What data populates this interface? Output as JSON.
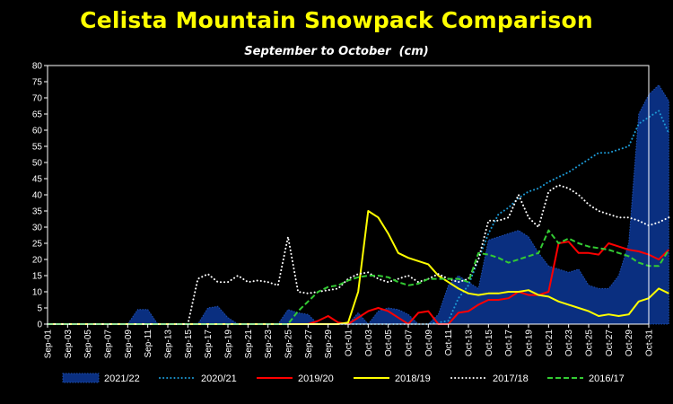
{
  "chart_data": {
    "type": "area",
    "title": "Celista Mountain Snowpack Comparison",
    "subtitle": "September to October  (cm)",
    "ylim": [
      0,
      80
    ],
    "yticks": [
      0,
      5,
      10,
      15,
      20,
      25,
      30,
      35,
      40,
      45,
      50,
      55,
      60,
      65,
      70,
      75,
      80
    ],
    "xticks": [
      "Sep-01",
      "Sep-03",
      "Sep-05",
      "Sep-07",
      "Sep-09",
      "Sep-11",
      "Sep-13",
      "Sep-15",
      "Sep-17",
      "Sep-19",
      "Sep-21",
      "Sep-23",
      "Sep-25",
      "Sep-27",
      "Sep-29",
      "Oct-01",
      "Oct-03",
      "Oct-05",
      "Oct-07",
      "Oct-09",
      "Oct-11",
      "Oct-13",
      "Oct-15",
      "Oct-17",
      "Oct-19",
      "Oct-21",
      "Oct-23",
      "Oct-25",
      "Oct-27",
      "Oct-29",
      "Oct-31"
    ],
    "x_day_index_note": "",
    "legend_position": "bottom",
    "series": [
      {
        "name": "2021/22",
        "style": "area",
        "color": "#0a2f80",
        "stroke": "#1e4fb0",
        "points": [
          [
            0,
            0
          ],
          [
            8,
            0
          ],
          [
            9,
            4.5
          ],
          [
            10,
            4.5
          ],
          [
            11,
            0
          ],
          [
            15,
            0
          ],
          [
            16,
            5
          ],
          [
            17,
            5.5
          ],
          [
            18,
            2
          ],
          [
            19,
            0
          ],
          [
            23,
            0
          ],
          [
            24,
            4.5
          ],
          [
            25,
            3.5
          ],
          [
            26,
            3
          ],
          [
            27,
            0
          ],
          [
            30,
            0
          ],
          [
            31,
            3.5
          ],
          [
            32,
            0
          ],
          [
            33,
            4
          ],
          [
            34,
            5
          ],
          [
            35,
            4.5
          ],
          [
            36,
            3
          ],
          [
            37,
            0
          ],
          [
            38,
            0
          ],
          [
            39,
            3
          ],
          [
            40,
            12
          ],
          [
            41,
            15
          ],
          [
            42,
            13
          ],
          [
            43,
            11
          ],
          [
            44,
            26
          ],
          [
            45,
            27
          ],
          [
            46,
            28
          ],
          [
            47,
            29
          ],
          [
            48,
            27
          ],
          [
            49,
            22
          ],
          [
            50,
            18
          ],
          [
            51,
            17
          ],
          [
            52,
            16
          ],
          [
            53,
            17
          ],
          [
            54,
            12
          ],
          [
            55,
            11
          ],
          [
            56,
            11
          ],
          [
            57,
            15
          ],
          [
            58,
            25
          ],
          [
            59,
            65
          ],
          [
            60,
            71
          ],
          [
            61,
            74
          ],
          [
            62,
            69
          ]
        ]
      },
      {
        "name": "2020/21",
        "style": "dotted",
        "color": "#1c9ad6",
        "points": [
          [
            0,
            0
          ],
          [
            38,
            0
          ],
          [
            39,
            0.5
          ],
          [
            40,
            1
          ],
          [
            41,
            8
          ],
          [
            42,
            12
          ],
          [
            43,
            20
          ],
          [
            44,
            28
          ],
          [
            45,
            34
          ],
          [
            46,
            36
          ],
          [
            47,
            39
          ],
          [
            48,
            41
          ],
          [
            49,
            42
          ],
          [
            50,
            44
          ],
          [
            51,
            45.5
          ],
          [
            52,
            47
          ],
          [
            53,
            49
          ],
          [
            54,
            51
          ],
          [
            55,
            53
          ],
          [
            56,
            53
          ],
          [
            57,
            54
          ],
          [
            58,
            55
          ],
          [
            59,
            62
          ],
          [
            60,
            64
          ],
          [
            61,
            66
          ],
          [
            62,
            59
          ]
        ]
      },
      {
        "name": "2019/20",
        "style": "solid",
        "color": "#ff0000",
        "points": [
          [
            0,
            0
          ],
          [
            26,
            0
          ],
          [
            27,
            1
          ],
          [
            28,
            2.5
          ],
          [
            29,
            0.5
          ],
          [
            30,
            0
          ],
          [
            31,
            2
          ],
          [
            32,
            4
          ],
          [
            33,
            5
          ],
          [
            34,
            4
          ],
          [
            35,
            2
          ],
          [
            36,
            0
          ],
          [
            37,
            3.5
          ],
          [
            38,
            4
          ],
          [
            39,
            0
          ],
          [
            40,
            0
          ],
          [
            41,
            3.5
          ],
          [
            42,
            4
          ],
          [
            43,
            6
          ],
          [
            44,
            7.5
          ],
          [
            45,
            7.5
          ],
          [
            46,
            8
          ],
          [
            47,
            10
          ],
          [
            48,
            9
          ],
          [
            49,
            9
          ],
          [
            50,
            10
          ],
          [
            51,
            25
          ],
          [
            52,
            25.5
          ],
          [
            53,
            22
          ],
          [
            54,
            22
          ],
          [
            55,
            21.5
          ],
          [
            56,
            25
          ],
          [
            57,
            24
          ],
          [
            58,
            23
          ],
          [
            59,
            22.5
          ],
          [
            60,
            21.5
          ],
          [
            61,
            20
          ],
          [
            62,
            23
          ]
        ]
      },
      {
        "name": "2018/19",
        "style": "solid",
        "color": "#ffff00",
        "points": [
          [
            0,
            0
          ],
          [
            29,
            0
          ],
          [
            30,
            0.5
          ],
          [
            31,
            10
          ],
          [
            32,
            35
          ],
          [
            33,
            33
          ],
          [
            34,
            28
          ],
          [
            35,
            22
          ],
          [
            36,
            20.5
          ],
          [
            37,
            19.5
          ],
          [
            38,
            18.5
          ],
          [
            39,
            15
          ],
          [
            40,
            13
          ],
          [
            41,
            11
          ],
          [
            42,
            9.5
          ],
          [
            43,
            9
          ],
          [
            44,
            9.5
          ],
          [
            45,
            9.5
          ],
          [
            46,
            10
          ],
          [
            47,
            10
          ],
          [
            48,
            10.5
          ],
          [
            49,
            9
          ],
          [
            50,
            8.5
          ],
          [
            51,
            7
          ],
          [
            52,
            6
          ],
          [
            53,
            5
          ],
          [
            54,
            4
          ],
          [
            55,
            2.5
          ],
          [
            56,
            3
          ],
          [
            57,
            2.5
          ],
          [
            58,
            3
          ],
          [
            59,
            7
          ],
          [
            60,
            8
          ],
          [
            61,
            11
          ],
          [
            62,
            9.5
          ]
        ]
      },
      {
        "name": "2017/18",
        "style": "dotted",
        "color": "#ffffff",
        "points": [
          [
            0,
            0
          ],
          [
            14,
            0
          ],
          [
            15,
            14
          ],
          [
            16,
            15.5
          ],
          [
            17,
            13
          ],
          [
            18,
            13
          ],
          [
            19,
            15
          ],
          [
            20,
            13
          ],
          [
            21,
            13.5
          ],
          [
            22,
            13
          ],
          [
            23,
            12
          ],
          [
            24,
            27
          ],
          [
            25,
            10
          ],
          [
            26,
            9.5
          ],
          [
            27,
            10
          ],
          [
            28,
            10.5
          ],
          [
            29,
            11
          ],
          [
            30,
            14
          ],
          [
            31,
            15.5
          ],
          [
            32,
            16
          ],
          [
            33,
            14
          ],
          [
            34,
            13
          ],
          [
            35,
            14
          ],
          [
            36,
            15
          ],
          [
            37,
            13
          ],
          [
            38,
            14
          ],
          [
            39,
            15.5
          ],
          [
            40,
            14
          ],
          [
            41,
            13
          ],
          [
            42,
            14
          ],
          [
            43,
            20
          ],
          [
            44,
            32
          ],
          [
            45,
            32
          ],
          [
            46,
            33
          ],
          [
            47,
            40
          ],
          [
            48,
            33
          ],
          [
            49,
            30
          ],
          [
            50,
            41
          ],
          [
            51,
            43
          ],
          [
            52,
            42
          ],
          [
            53,
            40
          ],
          [
            54,
            37
          ],
          [
            55,
            35
          ],
          [
            56,
            34
          ],
          [
            57,
            33
          ],
          [
            58,
            33
          ],
          [
            59,
            32
          ],
          [
            60,
            30.5
          ],
          [
            61,
            31.5
          ],
          [
            62,
            33
          ]
        ]
      },
      {
        "name": "2016/17",
        "style": "dashed",
        "color": "#33cc33",
        "points": [
          [
            0,
            0
          ],
          [
            24,
            0
          ],
          [
            25,
            4
          ],
          [
            26,
            7
          ],
          [
            27,
            10
          ],
          [
            28,
            11.5
          ],
          [
            29,
            12
          ],
          [
            30,
            13.5
          ],
          [
            31,
            14.5
          ],
          [
            32,
            15
          ],
          [
            33,
            15
          ],
          [
            34,
            14.5
          ],
          [
            35,
            13
          ],
          [
            36,
            12
          ],
          [
            37,
            12.5
          ],
          [
            38,
            14
          ],
          [
            39,
            14
          ],
          [
            40,
            14
          ],
          [
            41,
            14
          ],
          [
            42,
            13
          ],
          [
            43,
            22
          ],
          [
            44,
            21.5
          ],
          [
            45,
            20.5
          ],
          [
            46,
            19
          ],
          [
            47,
            20
          ],
          [
            48,
            21
          ],
          [
            49,
            22
          ],
          [
            50,
            29
          ],
          [
            51,
            25
          ],
          [
            52,
            26.5
          ],
          [
            53,
            25
          ],
          [
            54,
            24
          ],
          [
            55,
            23.5
          ],
          [
            56,
            23
          ],
          [
            57,
            22
          ],
          [
            58,
            21
          ],
          [
            59,
            19
          ],
          [
            60,
            18
          ],
          [
            61,
            18
          ],
          [
            62,
            23
          ]
        ]
      }
    ]
  }
}
